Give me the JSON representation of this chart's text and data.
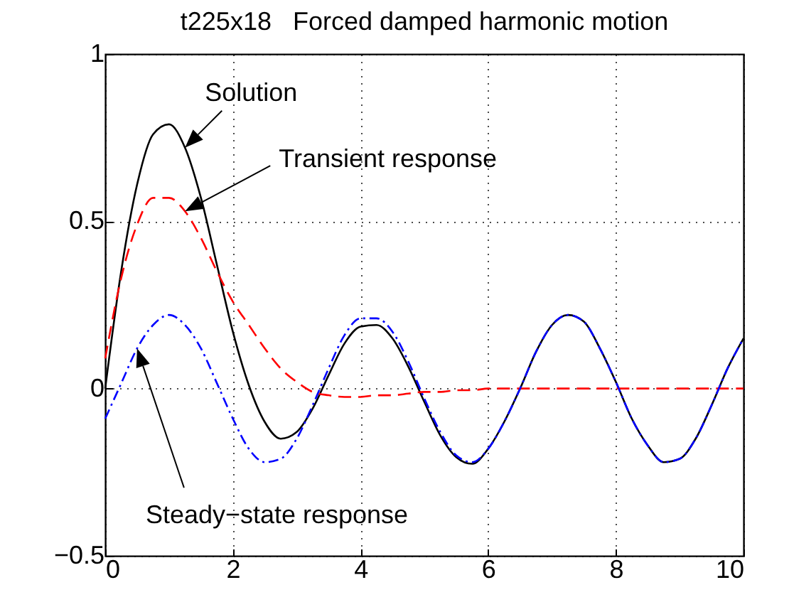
{
  "chart_data": {
    "type": "line",
    "title": "t225x18   Forced damped harmonic motion",
    "x": [
      0,
      0.25,
      0.5,
      0.75,
      1,
      1.25,
      1.5,
      1.75,
      2,
      2.25,
      2.5,
      2.75,
      3,
      3.25,
      3.5,
      3.75,
      4,
      4.25,
      4.5,
      4.75,
      5,
      5.25,
      5.5,
      5.75,
      6,
      6.25,
      6.5,
      6.75,
      7,
      7.25,
      7.5,
      7.75,
      8,
      8.25,
      8.5,
      8.75,
      9,
      9.25,
      9.5,
      9.75,
      10
    ],
    "series": [
      {
        "name": "Solution",
        "color": "#000000",
        "line_style": "solid",
        "values": [
          0,
          0.35,
          0.61,
          0.76,
          0.79,
          0.72,
          0.57,
          0.37,
          0.17,
          0.01,
          -0.1,
          -0.15,
          -0.13,
          -0.06,
          0.04,
          0.135,
          0.185,
          0.19,
          0.15,
          0.065,
          -0.04,
          -0.14,
          -0.205,
          -0.225,
          -0.18,
          -0.1,
          0,
          0.11,
          0.19,
          0.22,
          0.2,
          0.12,
          0.02,
          -0.09,
          -0.17,
          -0.22,
          -0.21,
          -0.15,
          -0.05,
          0.06,
          0.15
        ]
      },
      {
        "name": "Transient response",
        "color": "#ff0000",
        "line_style": "dashed",
        "values": [
          0.09,
          0.33,
          0.49,
          0.57,
          0.57,
          0.53,
          0.45,
          0.35,
          0.26,
          0.19,
          0.12,
          0.06,
          0.02,
          -0.01,
          -0.02,
          -0.025,
          -0.025,
          -0.02,
          -0.02,
          -0.015,
          -0.01,
          -0.01,
          -0.005,
          -0.005,
          0,
          0,
          0,
          0,
          0,
          0,
          0,
          0,
          0,
          0,
          0,
          0,
          0,
          0,
          0,
          0,
          0
        ]
      },
      {
        "name": "Steady−state response",
        "color": "#0000ff",
        "line_style": "dotted",
        "values": [
          -0.09,
          0.015,
          0.12,
          0.19,
          0.22,
          0.19,
          0.12,
          0.016,
          -0.09,
          -0.18,
          -0.22,
          -0.21,
          -0.15,
          -0.05,
          0.06,
          0.16,
          0.21,
          0.21,
          0.17,
          0.08,
          -0.03,
          -0.13,
          -0.2,
          -0.22,
          -0.18,
          -0.1,
          0,
          0.11,
          0.19,
          0.22,
          0.2,
          0.12,
          0.02,
          -0.09,
          -0.17,
          -0.22,
          -0.21,
          -0.15,
          -0.05,
          0.06,
          0.15
        ]
      }
    ],
    "xlim": [
      0,
      10
    ],
    "xticks": [
      0,
      2,
      4,
      6,
      8,
      10
    ],
    "ylim": [
      -0.5,
      1
    ],
    "yticks": [
      {
        "value": -0.5,
        "label": "−0.5"
      },
      {
        "value": 0,
        "label": "0"
      },
      {
        "value": 0.5,
        "label": "0.5"
      },
      {
        "value": 1,
        "label": "1"
      }
    ],
    "grid": true
  }
}
